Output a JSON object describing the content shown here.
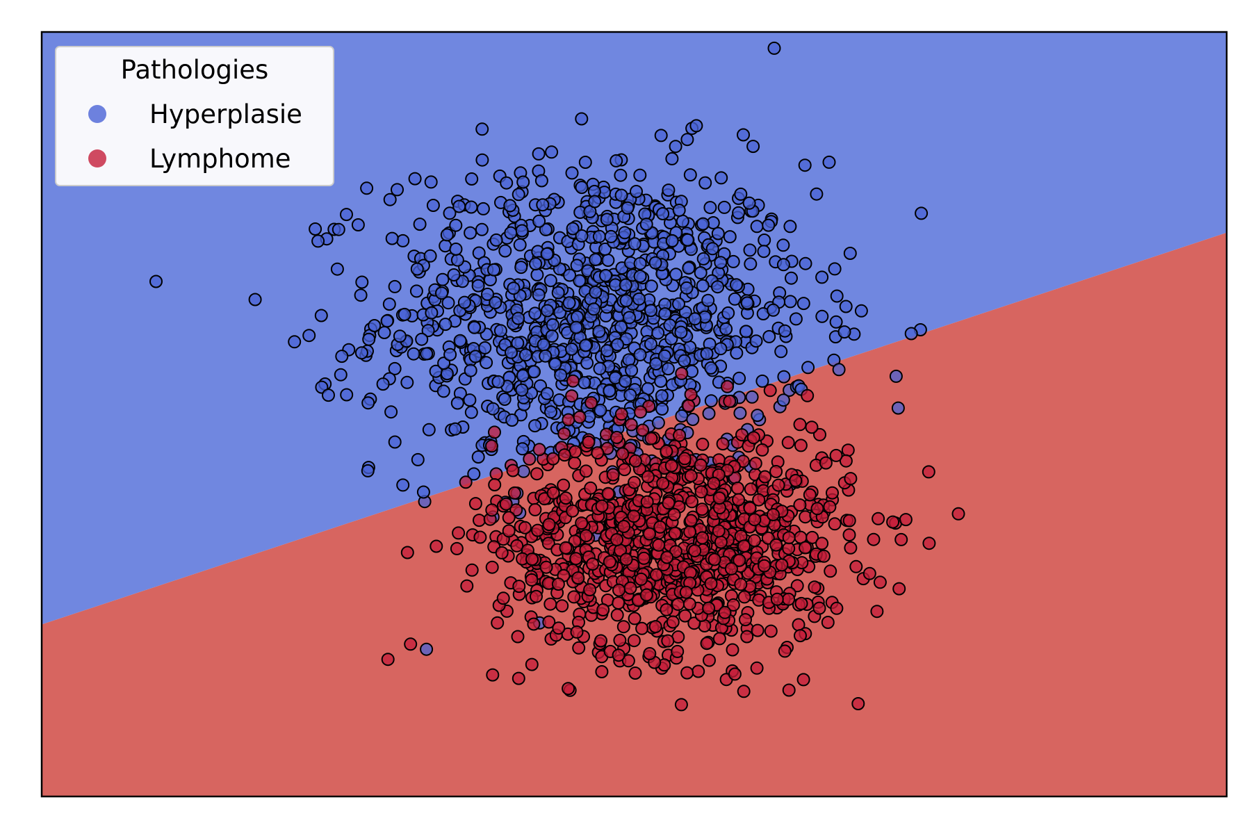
{
  "chart_data": {
    "type": "scatter",
    "title": "",
    "xlabel": "",
    "ylabel": "",
    "xlim": [
      -4,
      5
    ],
    "ylim": [
      -4,
      4
    ],
    "axes_ticks": "hidden",
    "grid": false,
    "decision_boundary": {
      "type": "linear",
      "points": [
        [
          -4,
          -2.2
        ],
        [
          5,
          1.9
        ]
      ],
      "region_above": "Hyperplasie",
      "region_below": "Lymphome"
    },
    "legend": {
      "title": "Pathologies",
      "placement": "top-left",
      "entries": [
        "Hyperplasie",
        "Lymphome"
      ]
    },
    "series": [
      {
        "name": "Hyperplasie",
        "color": "#4a63d6",
        "region_color": "#7087e0",
        "center": [
          0.2,
          1.0
        ],
        "spread": [
          1.1,
          1.1
        ],
        "approx_count": 1000
      },
      {
        "name": "Lymphome",
        "color": "#c41e3a",
        "region_color": "#d76560",
        "center": [
          0.8,
          -1.3
        ],
        "spread": [
          0.9,
          0.8
        ],
        "approx_count": 1000
      }
    ]
  },
  "colors": {
    "marker_edge": "#000000",
    "legend_bg": "#f8f8fc",
    "legend_border": "#cccccc",
    "axes_border": "#000000"
  }
}
